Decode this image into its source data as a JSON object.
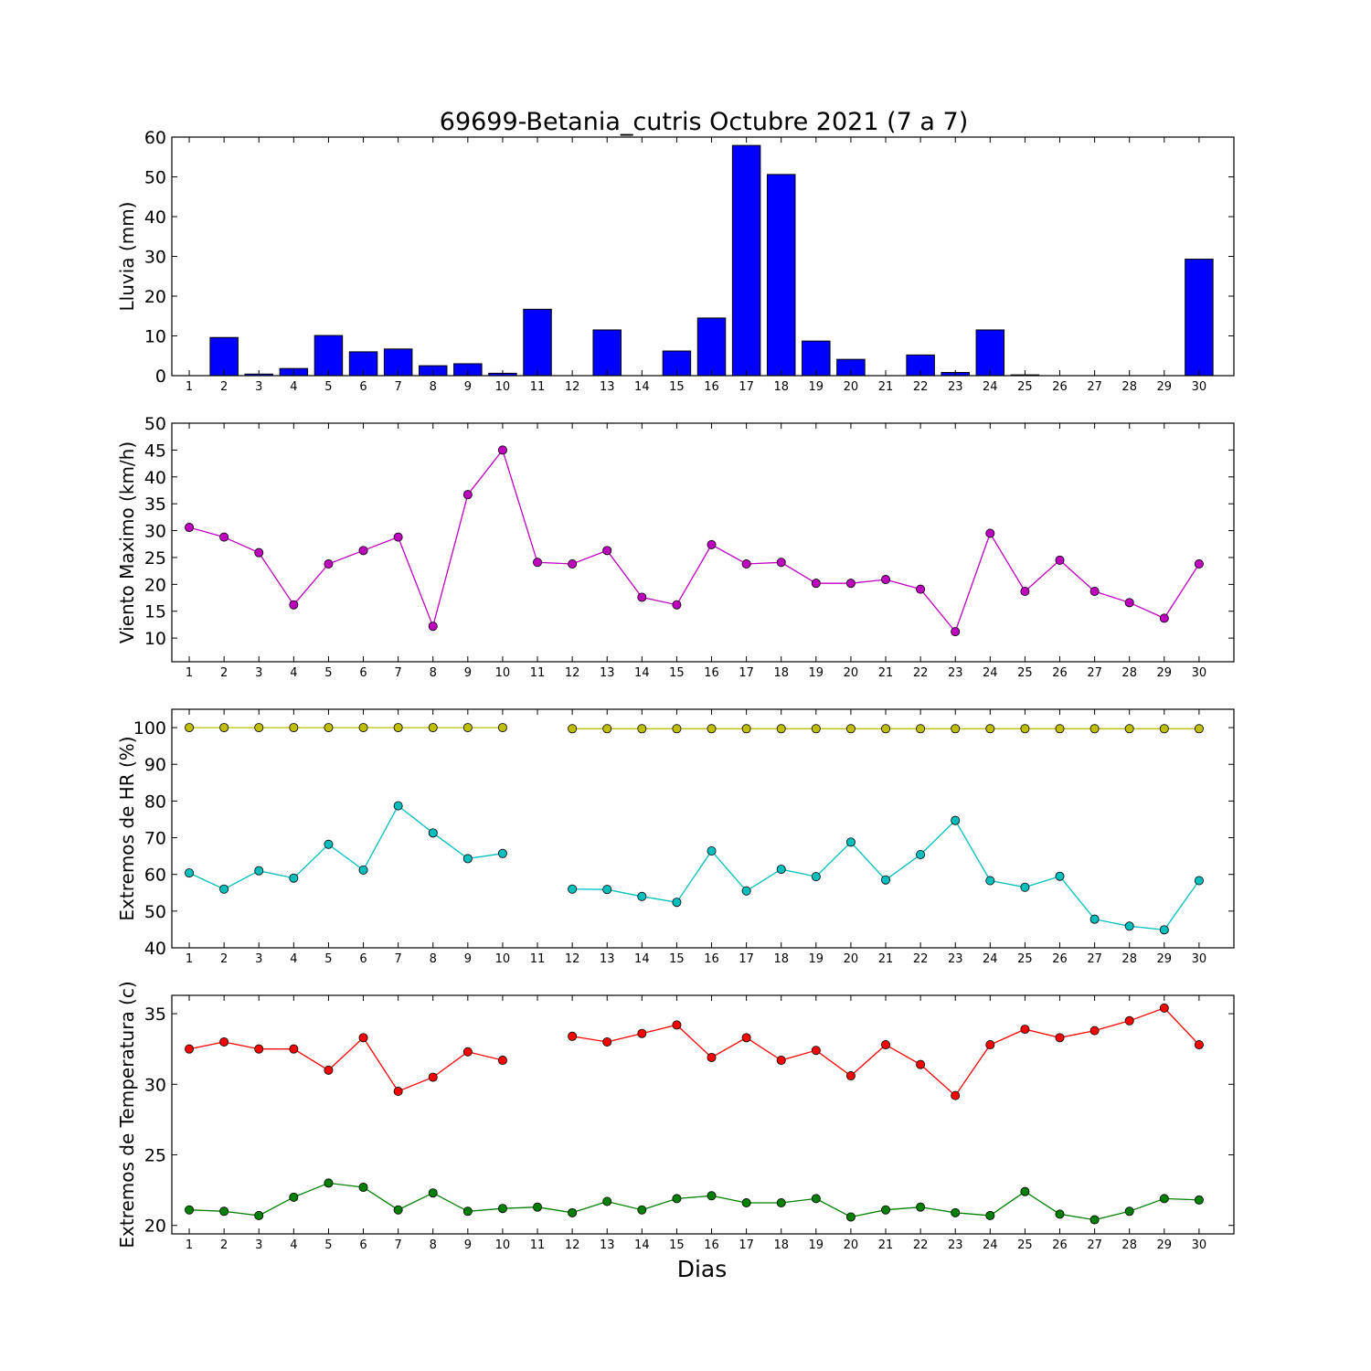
{
  "figure": {
    "title": "69699-Betania_cutris Octubre 2021  (7 a 7)",
    "xlabel": "Dias"
  },
  "chart_data": [
    {
      "type": "bar",
      "ylabel": "Lluvia (mm)",
      "ylim": [
        0,
        60
      ],
      "yticks": [
        0,
        10,
        20,
        30,
        40,
        50,
        60
      ],
      "categories": [
        "1",
        "2",
        "3",
        "4",
        "5",
        "6",
        "7",
        "8",
        "9",
        "10",
        "11",
        "12",
        "13",
        "14",
        "15",
        "16",
        "17",
        "18",
        "19",
        "20",
        "21",
        "22",
        "23",
        "24",
        "25",
        "26",
        "27",
        "28",
        "29",
        "30"
      ],
      "values": [
        0,
        9.6,
        0.4,
        1.8,
        10.1,
        6.0,
        6.7,
        2.5,
        3.0,
        0.6,
        16.7,
        0,
        11.5,
        0,
        6.2,
        14.5,
        57.9,
        50.6,
        8.7,
        4.1,
        0,
        5.2,
        0.8,
        11.5,
        0.2,
        0,
        0,
        0,
        0,
        29.3
      ],
      "color": "#0000ff",
      "grid": false
    },
    {
      "type": "line",
      "ylabel": "Viento Maximo (km/h)",
      "ylim": [
        5.6,
        50
      ],
      "yticks": [
        10,
        15,
        20,
        25,
        30,
        35,
        40,
        45,
        50
      ],
      "categories": [
        "1",
        "2",
        "3",
        "4",
        "5",
        "6",
        "7",
        "8",
        "9",
        "10",
        "11",
        "12",
        "13",
        "14",
        "15",
        "16",
        "17",
        "18",
        "19",
        "20",
        "21",
        "22",
        "23",
        "24",
        "25",
        "26",
        "27",
        "28",
        "29",
        "30"
      ],
      "series": [
        {
          "color": "#bf00bf",
          "values": [
            30.6,
            28.8,
            25.9,
            16.2,
            23.8,
            26.3,
            28.8,
            12.2,
            36.7,
            45.0,
            24.1,
            23.8,
            26.3,
            17.6,
            16.2,
            27.4,
            23.8,
            24.1,
            20.2,
            20.2,
            20.9,
            19.1,
            11.2,
            29.5,
            18.7,
            24.5,
            18.7,
            16.6,
            13.7,
            23.8
          ]
        }
      ],
      "grid": false
    },
    {
      "type": "line",
      "ylabel": "Extremos de HR (%)",
      "ylim": [
        40,
        105
      ],
      "yticks": [
        40,
        50,
        60,
        70,
        80,
        90,
        100
      ],
      "categories": [
        "1",
        "2",
        "3",
        "4",
        "5",
        "6",
        "7",
        "8",
        "9",
        "10",
        "11",
        "12",
        "13",
        "14",
        "15",
        "16",
        "17",
        "18",
        "19",
        "20",
        "21",
        "22",
        "23",
        "24",
        "25",
        "26",
        "27",
        "28",
        "29",
        "30"
      ],
      "series": [
        {
          "color": "#bfbf00",
          "values": [
            100,
            100,
            100,
            100,
            100,
            100,
            100,
            100,
            100,
            100,
            null,
            99.7,
            99.7,
            99.7,
            99.7,
            99.7,
            99.7,
            99.7,
            99.7,
            99.7,
            99.7,
            99.7,
            99.7,
            99.7,
            99.7,
            99.7,
            99.7,
            99.7,
            99.7,
            99.7
          ]
        },
        {
          "color": "#00bfbf",
          "values": [
            60.4,
            56.0,
            61.0,
            59.0,
            68.2,
            61.2,
            78.7,
            71.3,
            64.3,
            65.7,
            null,
            56.0,
            55.9,
            54.0,
            52.4,
            66.4,
            55.5,
            61.4,
            59.4,
            68.8,
            58.5,
            65.4,
            74.7,
            58.3,
            56.5,
            59.5,
            47.8,
            45.9,
            44.9,
            58.3
          ]
        }
      ],
      "grid": false
    },
    {
      "type": "line",
      "ylabel": "Extremos de Temperatura (c)",
      "ylim": [
        19.4,
        36.3
      ],
      "yticks": [
        20,
        25,
        30,
        35
      ],
      "categories": [
        "1",
        "2",
        "3",
        "4",
        "5",
        "6",
        "7",
        "8",
        "9",
        "10",
        "11",
        "12",
        "13",
        "14",
        "15",
        "16",
        "17",
        "18",
        "19",
        "20",
        "21",
        "22",
        "23",
        "24",
        "25",
        "26",
        "27",
        "28",
        "29",
        "30"
      ],
      "series": [
        {
          "color": "#ff0000",
          "values": [
            32.5,
            33.0,
            32.5,
            32.5,
            31.0,
            33.3,
            29.5,
            30.5,
            32.3,
            31.7,
            null,
            33.4,
            33.0,
            33.6,
            34.2,
            31.9,
            33.3,
            31.7,
            32.4,
            30.6,
            32.8,
            31.4,
            29.2,
            32.8,
            33.9,
            33.3,
            33.8,
            34.5,
            35.4,
            32.8
          ]
        },
        {
          "color": "#008000",
          "values": [
            21.1,
            21.0,
            20.7,
            22.0,
            23.0,
            22.7,
            21.1,
            22.3,
            21.0,
            21.2,
            21.3,
            20.9,
            21.7,
            21.1,
            21.9,
            22.1,
            21.6,
            21.6,
            21.9,
            20.6,
            21.1,
            21.3,
            20.9,
            20.7,
            22.4,
            20.8,
            20.4,
            21.0,
            21.9,
            21.8
          ]
        }
      ],
      "grid": false
    }
  ]
}
